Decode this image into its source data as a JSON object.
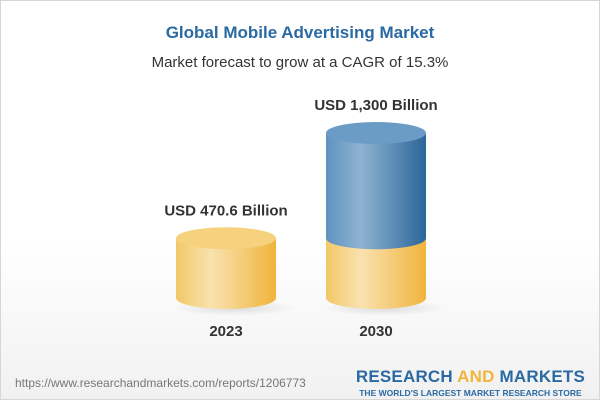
{
  "title": "Global Mobile Advertising Market",
  "subtitle": "Market forecast to grow at a CAGR of 15.3%",
  "chart_data": {
    "type": "bar",
    "style": "3d-cylinder",
    "categories": [
      "2023",
      "2030"
    ],
    "values": [
      470.6,
      1300
    ],
    "data_labels": [
      "USD 470.6 Billion",
      "USD 1,300 Billion"
    ],
    "unit": "USD Billion",
    "colors": {
      "base": "#f2c25a",
      "growth": "#3f7fb3"
    }
  },
  "footer": {
    "url": "https://www.researchandmarkets.com/reports/1206773",
    "logo_part1": "RESEARCH ",
    "logo_part2": "AND",
    "logo_part3": " MARKETS",
    "tagline": "THE WORLD'S LARGEST MARKET RESEARCH STORE"
  }
}
